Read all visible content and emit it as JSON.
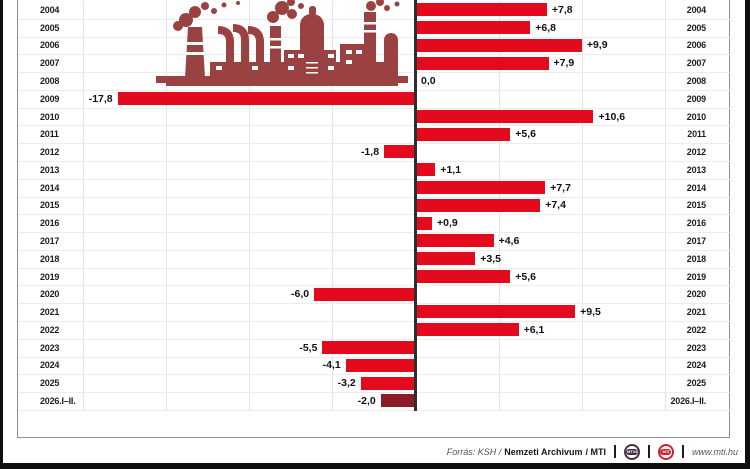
{
  "chart_data": {
    "type": "bar",
    "orientation": "horizontal",
    "categories": [
      "2004",
      "2005",
      "2006",
      "2007",
      "2008",
      "2009",
      "2010",
      "2011",
      "2012",
      "2013",
      "2014",
      "2015",
      "2016",
      "2017",
      "2018",
      "2019",
      "2020",
      "2021",
      "2022",
      "2023",
      "2024",
      "2025",
      "2026.I–II."
    ],
    "values": [
      7.8,
      6.8,
      9.9,
      7.9,
      0.0,
      -17.8,
      10.6,
      5.6,
      -1.8,
      1.1,
      7.7,
      7.4,
      0.9,
      4.6,
      3.5,
      5.6,
      -6.0,
      9.5,
      6.1,
      -5.5,
      -4.1,
      -3.2,
      -2.0
    ],
    "value_labels": [
      "+7,8",
      "+6,8",
      "+9,9",
      "+7,9",
      "0,0",
      "-17,8",
      "+10,6",
      "+5,6",
      "-1,8",
      "+1,1",
      "+7,7",
      "+7,4",
      "+0,9",
      "+4,6",
      "+3,5",
      "+5,6",
      "-6,0",
      "+9,5",
      "+6,1",
      "-5,5",
      "-4,1",
      "-3,2",
      "-2,0"
    ],
    "xlim": [
      -20,
      15
    ],
    "gridline_step": 5,
    "grid": true,
    "year_labels_position": "both-sides",
    "bar_color": "#e40a1e",
    "last_bar_color": "#8b1c26",
    "axis_color": "#2e2e2e"
  },
  "illustration": {
    "name": "factory-silhouette",
    "color": "#9a4242"
  },
  "footer": {
    "source_prefix": "Forrás: KSH /",
    "source_org": "Nemzeti Archivum",
    "source_suffix": "/ MTI",
    "logo_mtva": "MTVA",
    "logo_mti": "MTI",
    "website": "www.mti.hu"
  }
}
